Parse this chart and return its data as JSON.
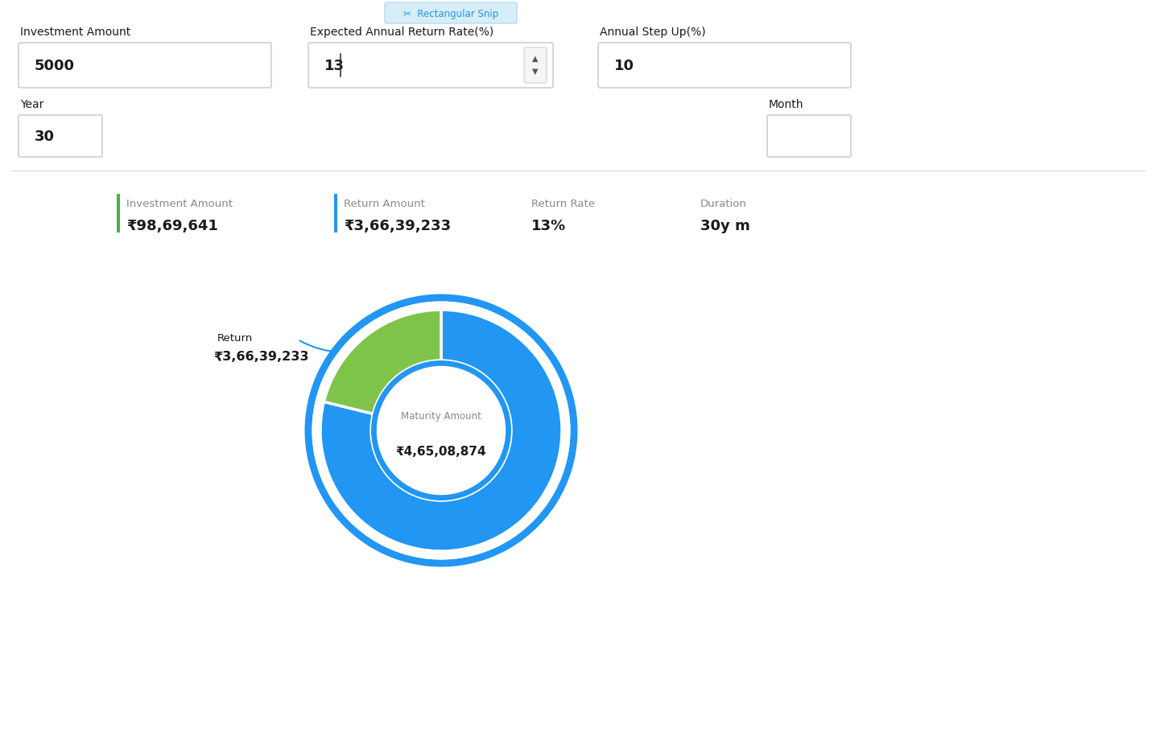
{
  "bg_color": "#ffffff",
  "top_button_label": "Rectangular Snip",
  "top_button_color": "#d6eef8",
  "top_button_text_color": "#2196f3",
  "field1_label": "Investment Amount",
  "field1_value": "5000",
  "field2_label": "Expected Annual Return Rate(%)",
  "field2_value": "13",
  "field3_label": "Annual Step Up(%)",
  "field3_value": "10",
  "year_label": "Year",
  "year_value": "30",
  "month_label": "Month",
  "month_value": "",
  "stat1_label": "Investment Amount",
  "stat1_value": "₹98,69,641",
  "stat1_bar_color": "#4caf50",
  "stat2_label": "Return Amount",
  "stat2_value": "₹3,66,39,233",
  "stat2_bar_color": "#2196f3",
  "stat3_label": "Return Rate",
  "stat3_value": "13%",
  "stat4_label": "Duration",
  "stat4_value": "30y m",
  "donut_blue_pct": 78.82,
  "donut_green_pct": 21.18,
  "donut_blue_color": "#2196f3",
  "donut_green_color": "#7ec44a",
  "donut_border_color": "#ffffff",
  "donut_outer_border_color": "#2196f3",
  "maturity_label": "Maturity Amount",
  "maturity_value": "₹4,65,08,874",
  "return_label": "Return",
  "return_value": "₹3,66,39,233",
  "field_border_color": "#d0d0d0",
  "field_bg": "#ffffff",
  "text_dark": "#1a1a1a",
  "text_gray": "#888888",
  "divider_color": "#e0e0e0"
}
